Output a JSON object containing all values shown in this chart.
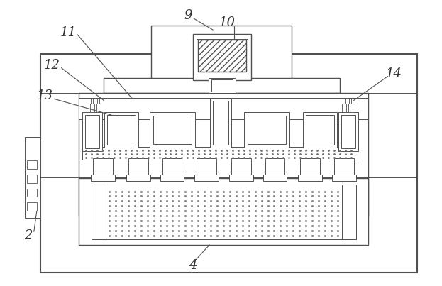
{
  "background_color": "#ffffff",
  "line_color": "#505050",
  "label_color": "#333333",
  "figsize": [
    6.23,
    4.03
  ],
  "dpi": 100
}
